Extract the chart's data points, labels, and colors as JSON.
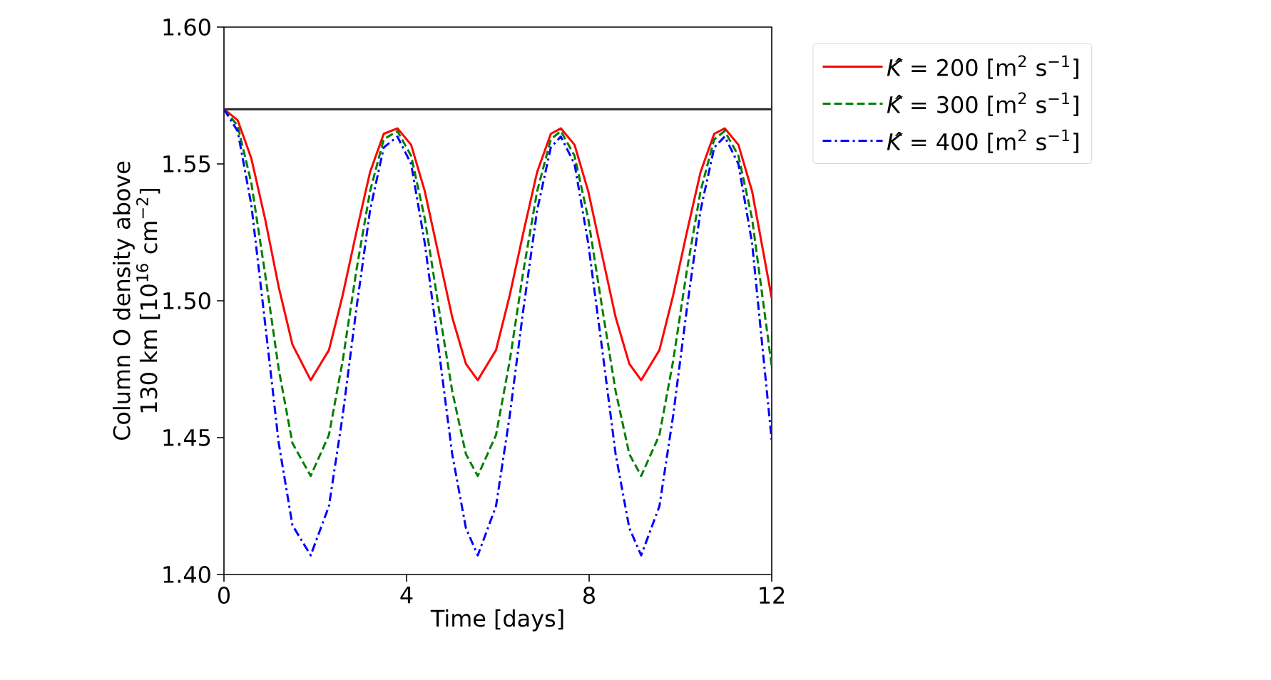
{
  "chart_data": {
    "type": "line",
    "xlabel": "Time [days]",
    "ylabel": "Column O density above 130 km [10$^{16}$ cm$^{−2}$]",
    "xlim": [
      0,
      12
    ],
    "ylim": [
      1.4,
      1.6
    ],
    "xticks": [
      0,
      4,
      8,
      12
    ],
    "yticks": [
      {
        "value": 1.4,
        "label": "1.40"
      },
      1.45,
      {
        "value": 1.5,
        "label": "1.50"
      },
      1.55,
      {
        "value": 1.6,
        "label": "1.60"
      }
    ],
    "legend": "right",
    "grid": false,
    "ref_lines": [
      {
        "axis": "y",
        "value": 1.57,
        "color": "#262626"
      }
    ],
    "x": [
      0,
      0.3,
      0.6,
      0.9,
      1.2,
      1.5,
      1.9,
      2.3,
      2.6,
      2.9,
      3.2,
      3.5,
      3.8,
      4.1,
      4.4,
      4.7,
      5.0,
      5.3,
      5.56,
      5.96,
      6.26,
      6.56,
      6.86,
      7.16,
      7.38,
      7.68,
      7.98,
      8.28,
      8.58,
      8.88,
      9.14,
      9.54,
      9.84,
      10.14,
      10.44,
      10.74,
      10.97,
      11.27,
      11.57,
      12
    ],
    "series": [
      {
        "name": "*K̂* = 200 [m$^{2}$ s$^{−1}$]",
        "color": "#ff0000",
        "line_style": "solid",
        "values": [
          1.57,
          1.566,
          1.552,
          1.53,
          1.505,
          1.484,
          1.471,
          1.482,
          1.502,
          1.525,
          1.547,
          1.561,
          1.563,
          1.557,
          1.54,
          1.517,
          1.494,
          1.477,
          1.471,
          1.482,
          1.502,
          1.525,
          1.547,
          1.561,
          1.563,
          1.557,
          1.54,
          1.517,
          1.494,
          1.477,
          1.471,
          1.482,
          1.502,
          1.525,
          1.547,
          1.561,
          1.563,
          1.557,
          1.54,
          1.501
        ]
      },
      {
        "name": "*K̂* = 300 [m$^{2}$ s$^{−1}$]",
        "color": "#008000",
        "line_style": "dashed",
        "values": [
          1.57,
          1.564,
          1.543,
          1.51,
          1.475,
          1.448,
          1.436,
          1.451,
          1.478,
          1.511,
          1.54,
          1.559,
          1.562,
          1.553,
          1.53,
          1.498,
          1.467,
          1.444,
          1.436,
          1.451,
          1.478,
          1.511,
          1.54,
          1.559,
          1.562,
          1.553,
          1.53,
          1.498,
          1.467,
          1.444,
          1.436,
          1.451,
          1.478,
          1.511,
          1.54,
          1.559,
          1.562,
          1.553,
          1.53,
          1.476
        ]
      },
      {
        "name": "*K̂* = 400 [m$^{2}$ s$^{−1}$]",
        "color": "#0000ff",
        "line_style": "dashdot",
        "values": [
          1.57,
          1.562,
          1.535,
          1.492,
          1.448,
          1.418,
          1.407,
          1.425,
          1.458,
          1.497,
          1.533,
          1.556,
          1.56,
          1.55,
          1.521,
          1.483,
          1.444,
          1.417,
          1.407,
          1.425,
          1.458,
          1.497,
          1.533,
          1.556,
          1.56,
          1.55,
          1.521,
          1.483,
          1.444,
          1.417,
          1.407,
          1.425,
          1.458,
          1.497,
          1.533,
          1.556,
          1.56,
          1.55,
          1.521,
          1.449
        ]
      }
    ]
  }
}
